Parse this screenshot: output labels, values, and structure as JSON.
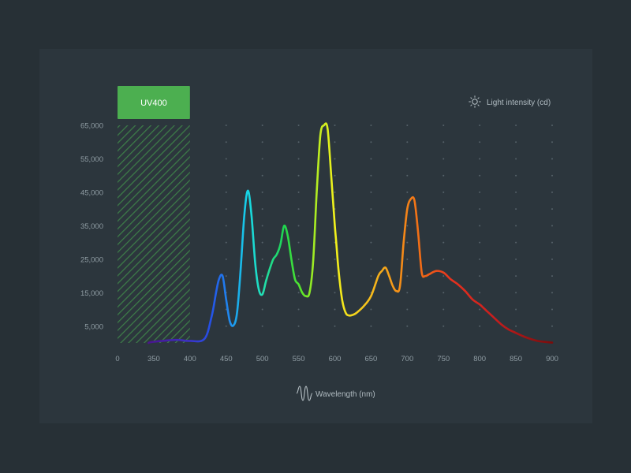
{
  "colors": {
    "page_background": "#273036",
    "card_background": "#2c363d",
    "text": "#8f9ca3",
    "grid_dot": "#56626a",
    "uv_band_fill": "#4caf50",
    "uv_hatch": "#3d7d48"
  },
  "chart_data": {
    "type": "line",
    "title": "",
    "xlabel": "Wavelength (nm)",
    "ylabel": "Light intensity (cd)",
    "x_ticks": [
      "0",
      "350",
      "400",
      "450",
      "500",
      "550",
      "600",
      "650",
      "700",
      "750",
      "800",
      "850",
      "900"
    ],
    "y_ticks": [
      "5,000",
      "15,000",
      "25,000",
      "35,000",
      "45,000",
      "55,000",
      "65,000"
    ],
    "xlim": [
      0,
      900
    ],
    "ylim": [
      0,
      65000
    ],
    "grid": "dotted",
    "legend": "top-right",
    "annotations": [
      {
        "text": "UV400",
        "range": [
          "0",
          "400"
        ],
        "style": "green band with diagonal hatch"
      }
    ],
    "series": [
      {
        "x": [
          300,
          340,
          380,
          400,
          420,
          430,
          436,
          440,
          445,
          450,
          455,
          460,
          465,
          470,
          475,
          480,
          485,
          490,
          495,
          500,
          505,
          510,
          515,
          520,
          525,
          530,
          535,
          540,
          545,
          550,
          555,
          560,
          565,
          570,
          575,
          580,
          585,
          590,
          595,
          600,
          602,
          605,
          610,
          615,
          620,
          625,
          630,
          640,
          650,
          660,
          665,
          670,
          675,
          680,
          685,
          690,
          695,
          700,
          705,
          710,
          715,
          720,
          725,
          730,
          740,
          750,
          760,
          770,
          780,
          790,
          800,
          805,
          810,
          820,
          830,
          840,
          850,
          860,
          870,
          880,
          890,
          900
        ],
        "values": [
          0,
          300,
          900,
          600,
          1200,
          8000,
          15000,
          19000,
          20000,
          13000,
          6500,
          5200,
          9000,
          22000,
          38000,
          45500,
          38000,
          24000,
          16000,
          14500,
          18500,
          22000,
          25000,
          26500,
          29500,
          35000,
          32000,
          25000,
          19000,
          17500,
          15000,
          14000,
          15000,
          24000,
          45000,
          62000,
          65000,
          64000,
          50000,
          35000,
          30000,
          22000,
          13000,
          9000,
          8200,
          8400,
          9000,
          11000,
          14000,
          20000,
          21500,
          22500,
          20000,
          17000,
          15500,
          17000,
          30000,
          40000,
          43000,
          42500,
          33000,
          21000,
          20000,
          20500,
          21500,
          21000,
          19000,
          17500,
          15500,
          13000,
          11500,
          10500,
          9500,
          7500,
          5500,
          4000,
          3000,
          2000,
          1200,
          600,
          300,
          100
        ],
        "color_stops": [
          {
            "x": 300,
            "color": "#4a148c"
          },
          {
            "x": 400,
            "color": "#3b32c8"
          },
          {
            "x": 430,
            "color": "#2453e8"
          },
          {
            "x": 455,
            "color": "#1f8cf0"
          },
          {
            "x": 480,
            "color": "#16d6e6"
          },
          {
            "x": 500,
            "color": "#22e0b4"
          },
          {
            "x": 530,
            "color": "#1ed64e"
          },
          {
            "x": 555,
            "color": "#5ce62a"
          },
          {
            "x": 580,
            "color": "#c7ee20"
          },
          {
            "x": 600,
            "color": "#f2f21c"
          },
          {
            "x": 640,
            "color": "#f6c61c"
          },
          {
            "x": 680,
            "color": "#f59a19"
          },
          {
            "x": 720,
            "color": "#f26a16"
          },
          {
            "x": 760,
            "color": "#e8321e"
          },
          {
            "x": 820,
            "color": "#c81e1e"
          },
          {
            "x": 900,
            "color": "#7a0c0c"
          }
        ]
      }
    ]
  }
}
